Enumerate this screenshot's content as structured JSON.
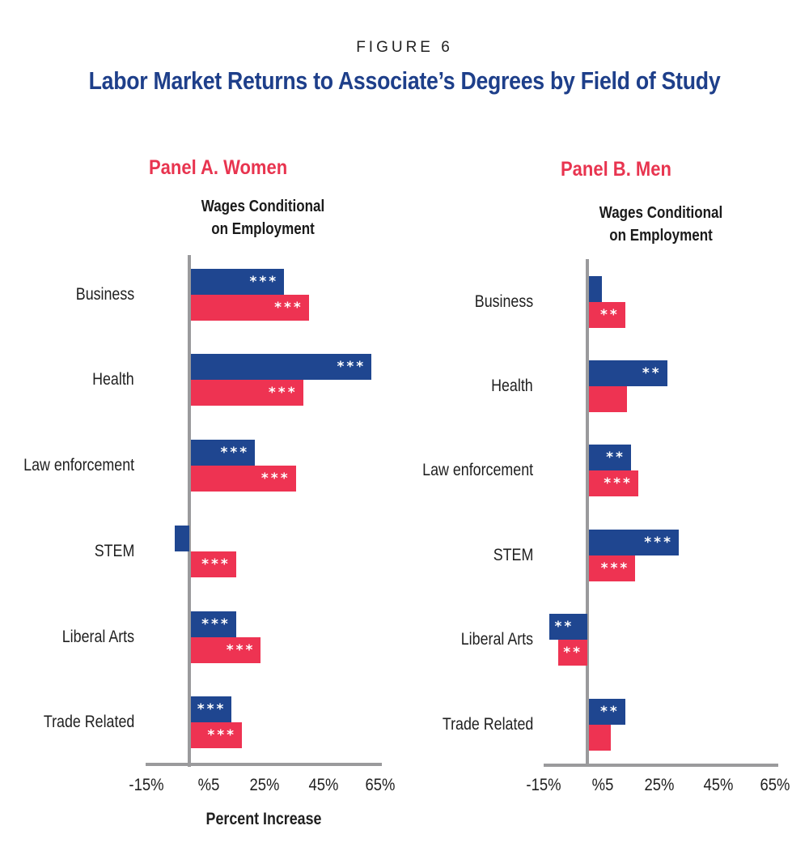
{
  "figure": {
    "label": "FIGURE 6",
    "title": "Labor Market Returns to Associate’s Degrees by Field of Study"
  },
  "colors": {
    "title_navy": "#1E3F8A",
    "panel_title_red": "#E8344F",
    "series_blue": "#1F4690",
    "series_red": "#EE3352",
    "axis_gray": "#9A9A9C"
  },
  "panels": [
    {
      "title": "Panel A. Women",
      "metric_title_line1": "Wages Conditional",
      "metric_title_line2": "on Employment",
      "x_ticks": [
        "-15%",
        "%5",
        "25%",
        "45%",
        "65%"
      ],
      "x_axis_title": "Percent Increase"
    },
    {
      "title": "Panel B. Men",
      "metric_title_line1": "Wages Conditional",
      "metric_title_line2": "on Employment",
      "x_ticks": [
        "-15%",
        "%5",
        "25%",
        "45%",
        "65%"
      ],
      "x_axis_title": ""
    }
  ],
  "chart_data": [
    {
      "type": "bar",
      "orientation": "horizontal",
      "title": "Panel A. Women",
      "subtitle": "Wages Conditional on Employment",
      "xlabel": "Percent Increase",
      "ylabel": "",
      "xlim": [
        -15,
        65
      ],
      "x_tick_labels": [
        "-15%",
        "%5",
        "25%",
        "45%",
        "65%"
      ],
      "grid": false,
      "legend": null,
      "categories": [
        "Business",
        "Health",
        "Law enforcement",
        "STEM",
        "Liberal Arts",
        "Trade Related"
      ],
      "series": [
        {
          "name": "blue series",
          "color": "#1F4690",
          "values": [
            32,
            62,
            22,
            -5,
            15.5,
            14
          ],
          "significance": [
            "***",
            "***",
            "***",
            "",
            "***",
            "***"
          ]
        },
        {
          "name": "red series",
          "color": "#EE3352",
          "values": [
            40.5,
            38.5,
            36,
            15.5,
            24,
            17.5
          ],
          "significance": [
            "***",
            "***",
            "***",
            "***",
            "***",
            "***"
          ]
        }
      ]
    },
    {
      "type": "bar",
      "orientation": "horizontal",
      "title": "Panel B. Men",
      "subtitle": "Wages Conditional on Employment",
      "xlabel": "",
      "ylabel": "",
      "xlim": [
        -15,
        65
      ],
      "x_tick_labels": [
        "-15%",
        "%5",
        "25%",
        "45%",
        "65%"
      ],
      "grid": false,
      "legend": null,
      "categories": [
        "Business",
        "Health",
        "Law enforcement",
        "STEM",
        "Liberal Arts",
        "Trade Related"
      ],
      "series": [
        {
          "name": "blue series",
          "color": "#1F4690",
          "values": [
            4.5,
            27,
            14.5,
            31,
            -13,
            12.5
          ],
          "significance": [
            "",
            "**",
            "**",
            "***",
            "**",
            "**"
          ]
        },
        {
          "name": "red series",
          "color": "#EE3352",
          "values": [
            12.5,
            13,
            17,
            16,
            -10,
            7.5
          ],
          "significance": [
            "**",
            "",
            "***",
            "***",
            "**",
            ""
          ]
        }
      ]
    }
  ]
}
